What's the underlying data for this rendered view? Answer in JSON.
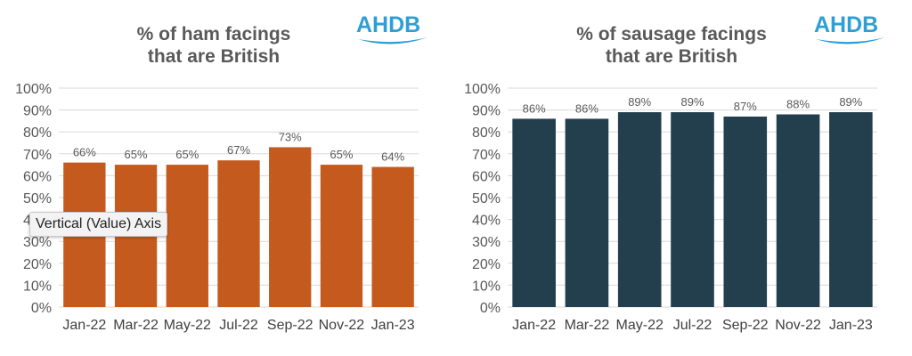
{
  "logo_text": "AHDB",
  "tooltip": "Vertical (Value) Axis",
  "chart_data": [
    {
      "type": "bar",
      "title": "% of ham facings that are British",
      "title_lines": [
        "% of ham facings",
        "that are British"
      ],
      "categories": [
        "Jan-22",
        "Mar-22",
        "May-22",
        "Jul-22",
        "Sep-22",
        "Nov-22",
        "Jan-23"
      ],
      "values": [
        66,
        65,
        65,
        67,
        73,
        65,
        64
      ],
      "data_labels": [
        "66%",
        "65%",
        "65%",
        "67%",
        "73%",
        "65%",
        "64%"
      ],
      "ylim": [
        0,
        100
      ],
      "yticks": [
        "0%",
        "10%",
        "20%",
        "30%",
        "40%",
        "50%",
        "60%",
        "70%",
        "80%",
        "90%",
        "100%"
      ],
      "color": "#c55a1f",
      "grid": true,
      "legend": "none"
    },
    {
      "type": "bar",
      "title": "% of sausage facings that are British",
      "title_lines": [
        "% of sausage facings",
        "that are British"
      ],
      "categories": [
        "Jan-22",
        "Mar-22",
        "May-22",
        "Jul-22",
        "Sep-22",
        "Nov-22",
        "Jan-23"
      ],
      "values": [
        86,
        86,
        89,
        89,
        87,
        88,
        89
      ],
      "data_labels": [
        "86%",
        "86%",
        "89%",
        "89%",
        "87%",
        "88%",
        "89%"
      ],
      "ylim": [
        0,
        100
      ],
      "yticks": [
        "0%",
        "10%",
        "20%",
        "30%",
        "40%",
        "50%",
        "60%",
        "70%",
        "80%",
        "90%",
        "100%"
      ],
      "color": "#233f4e",
      "grid": true,
      "legend": "none"
    }
  ]
}
